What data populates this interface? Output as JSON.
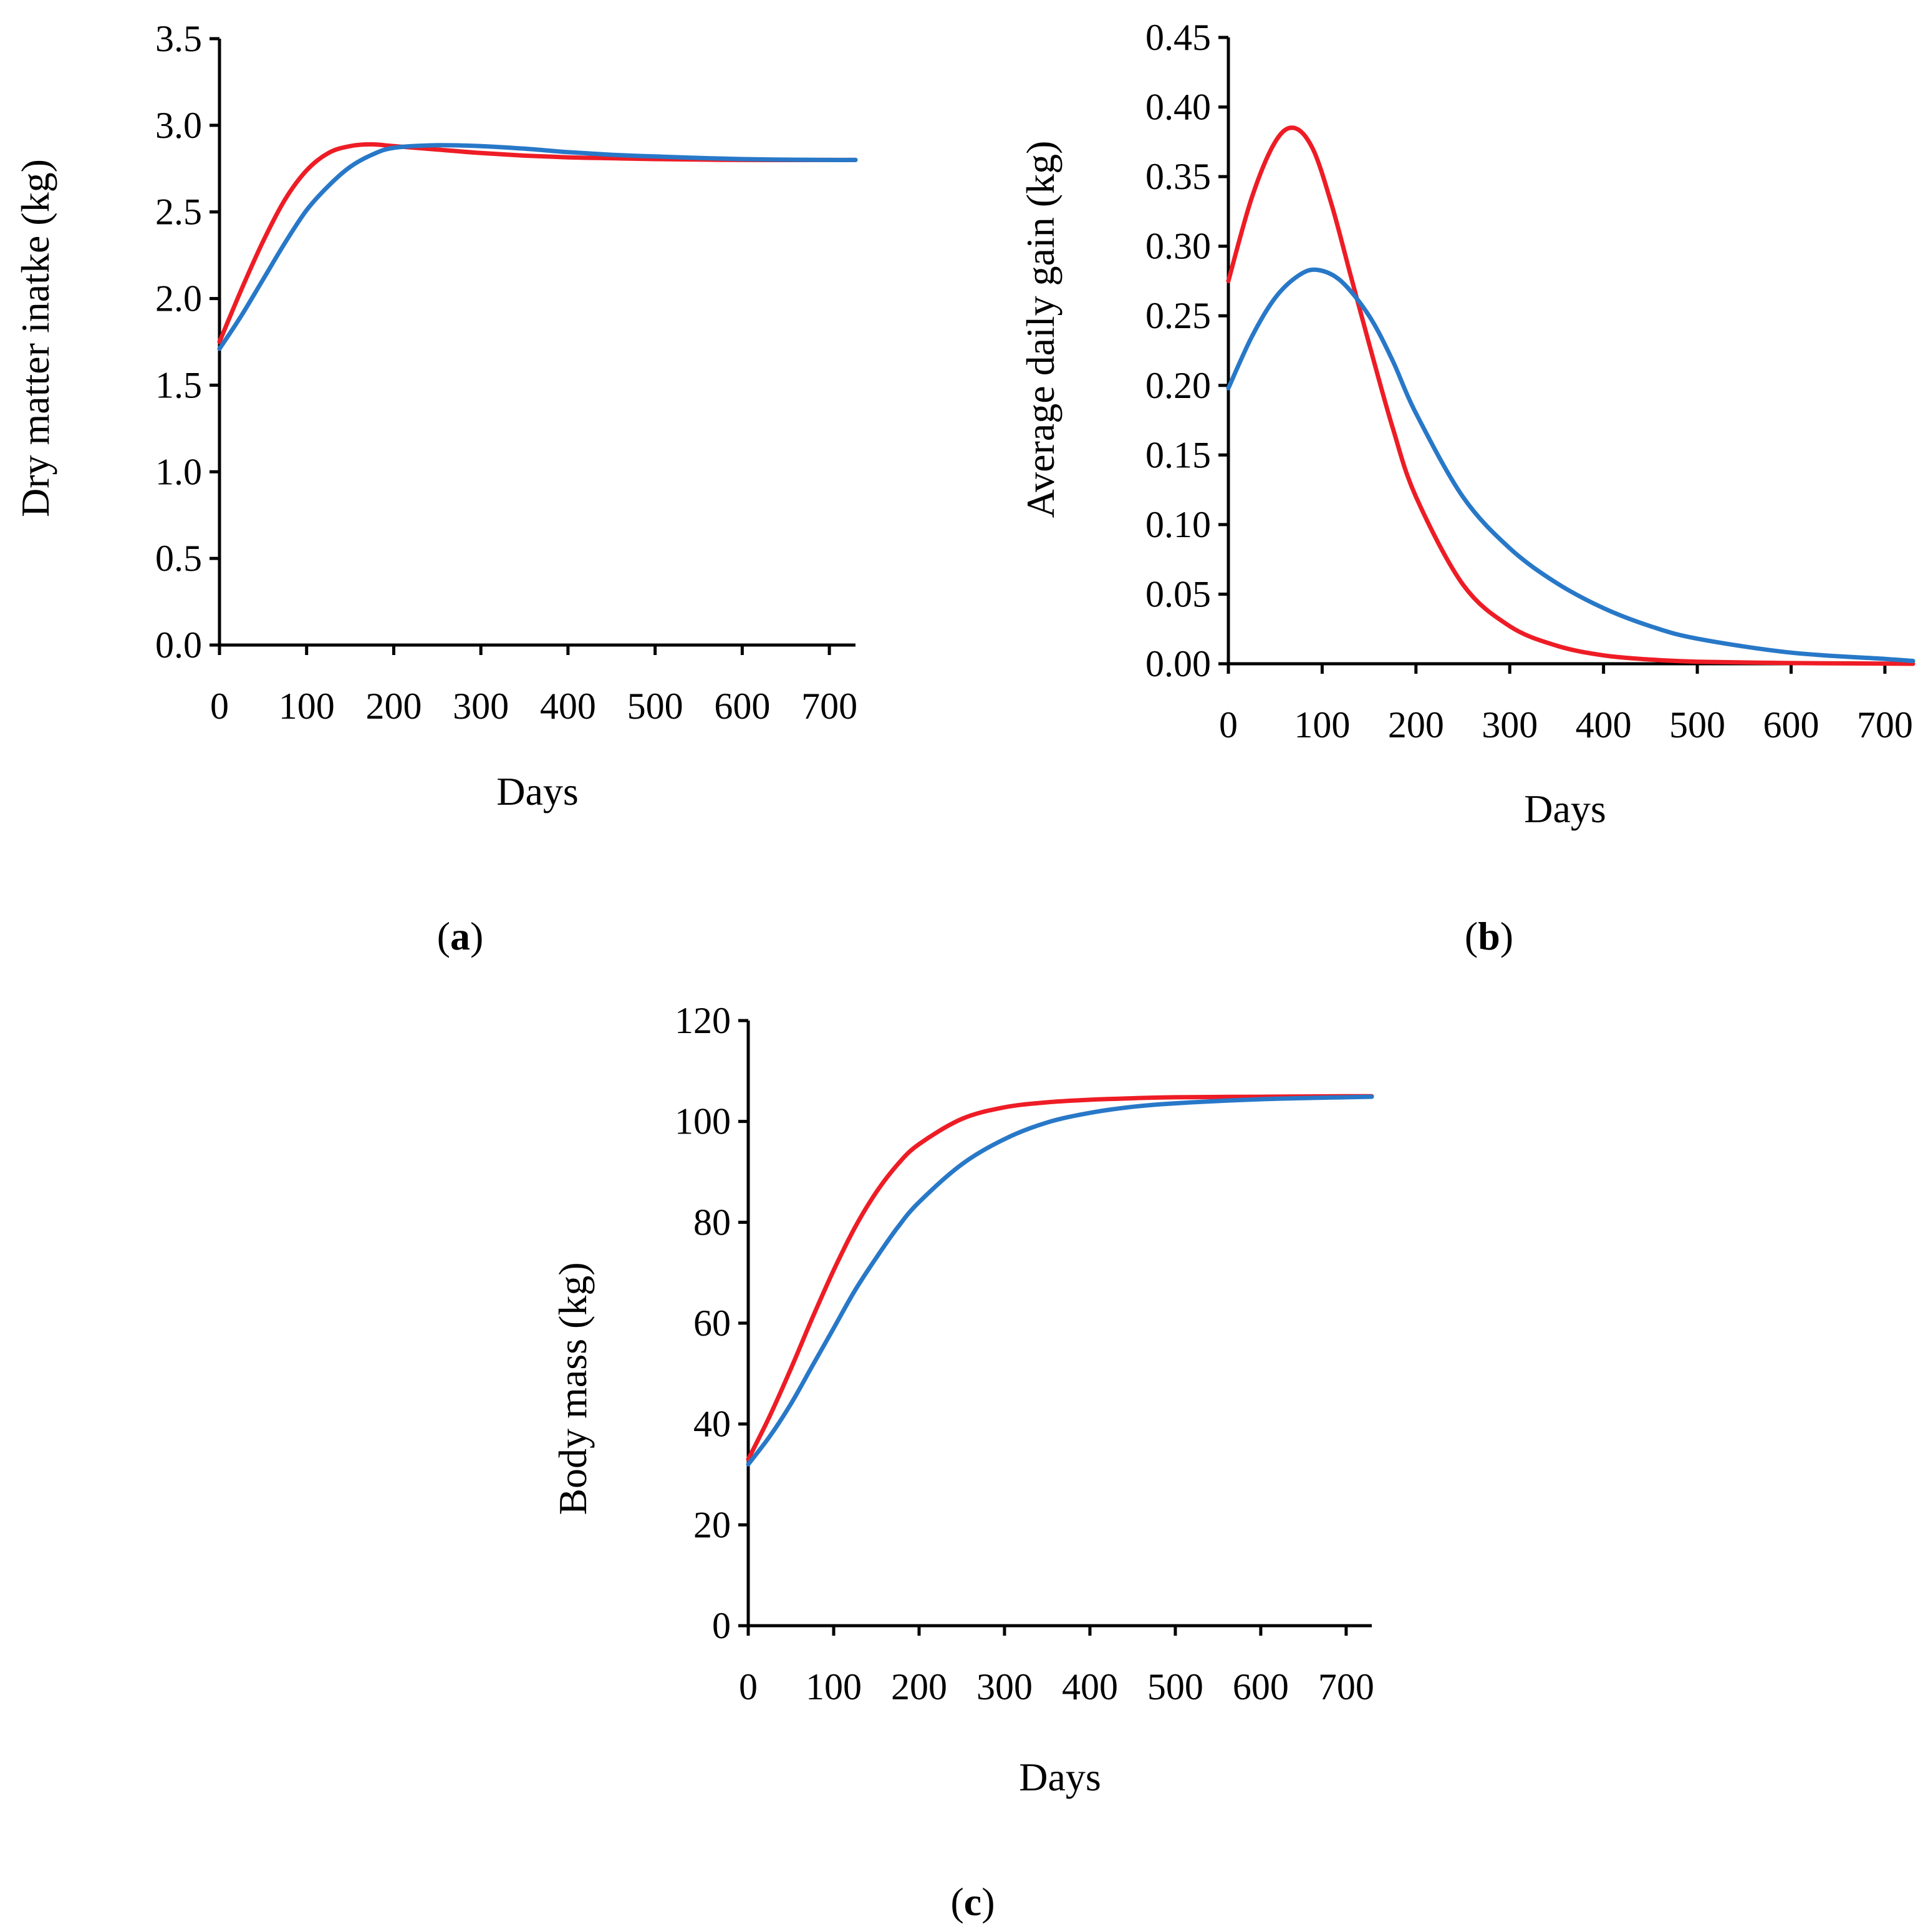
{
  "chart_data": [
    {
      "id": "a",
      "type": "line",
      "panel_label": "a",
      "xlabel": "Days",
      "ylabel": "Dry matter inatke (kg)",
      "xlim": [
        0,
        730
      ],
      "ylim": [
        0,
        3.5
      ],
      "xticks": [
        0,
        100,
        200,
        300,
        400,
        500,
        600,
        700
      ],
      "xtick_labels": [
        "0",
        "100",
        "200",
        "300",
        "400",
        "500",
        "600",
        "700"
      ],
      "yticks": [
        0,
        0.5,
        1,
        1.5,
        2,
        2.5,
        3,
        3.5
      ],
      "ytick_labels": [
        "0.0",
        "0.5",
        "1.0",
        "1.5",
        "2.0",
        "2.5",
        "3.0",
        "3.5"
      ],
      "grid": false,
      "series": [
        {
          "name": "red",
          "color": "#EE1C25",
          "x": [
            0,
            25,
            50,
            75,
            100,
            125,
            150,
            175,
            200,
            250,
            300,
            350,
            400,
            450,
            500,
            600,
            700,
            730
          ],
          "y": [
            1.75,
            2.05,
            2.33,
            2.57,
            2.74,
            2.84,
            2.88,
            2.89,
            2.88,
            2.86,
            2.84,
            2.825,
            2.815,
            2.81,
            2.805,
            2.8,
            2.8,
            2.8
          ]
        },
        {
          "name": "blue",
          "color": "#2878C8",
          "x": [
            0,
            25,
            50,
            75,
            100,
            125,
            150,
            175,
            200,
            250,
            300,
            350,
            400,
            450,
            500,
            600,
            700,
            730
          ],
          "y": [
            1.71,
            1.9,
            2.11,
            2.32,
            2.51,
            2.65,
            2.76,
            2.83,
            2.87,
            2.885,
            2.88,
            2.865,
            2.845,
            2.83,
            2.82,
            2.805,
            2.8,
            2.8
          ]
        }
      ]
    },
    {
      "id": "b",
      "type": "line",
      "panel_label": "b",
      "xlabel": "Days",
      "ylabel": "Average daily gain (kg)",
      "xlim": [
        0,
        730
      ],
      "ylim": [
        0,
        0.45
      ],
      "xticks": [
        0,
        100,
        200,
        300,
        400,
        500,
        600,
        700
      ],
      "xtick_labels": [
        "0",
        "100",
        "200",
        "300",
        "400",
        "500",
        "600",
        "700"
      ],
      "yticks": [
        0,
        0.05,
        0.1,
        0.15,
        0.2,
        0.25,
        0.3,
        0.35,
        0.4,
        0.45
      ],
      "ytick_labels": [
        "0.00",
        "0.05",
        "0.10",
        "0.15",
        "0.20",
        "0.25",
        "0.30",
        "0.35",
        "0.40",
        "0.45"
      ],
      "grid": false,
      "series": [
        {
          "name": "red",
          "color": "#EE1C25",
          "x": [
            0,
            25,
            50,
            70,
            90,
            110,
            130,
            150,
            175,
            200,
            250,
            300,
            350,
            400,
            450,
            500,
            600,
            700,
            730
          ],
          "y": [
            0.275,
            0.335,
            0.375,
            0.385,
            0.37,
            0.33,
            0.28,
            0.23,
            0.17,
            0.12,
            0.057,
            0.027,
            0.013,
            0.006,
            0.003,
            0.0015,
            0.0005,
            0.0001,
            0.0
          ]
        },
        {
          "name": "blue",
          "color": "#2878C8",
          "x": [
            0,
            25,
            50,
            75,
            95,
            120,
            150,
            175,
            200,
            250,
            300,
            350,
            400,
            450,
            500,
            600,
            700,
            730
          ],
          "y": [
            0.198,
            0.235,
            0.263,
            0.279,
            0.283,
            0.275,
            0.25,
            0.218,
            0.18,
            0.12,
            0.083,
            0.058,
            0.04,
            0.027,
            0.018,
            0.008,
            0.0035,
            0.002
          ]
        }
      ]
    },
    {
      "id": "c",
      "type": "line",
      "panel_label": "c",
      "xlabel": "Days",
      "ylabel": "Body mass (kg)",
      "xlim": [
        0,
        730
      ],
      "ylim": [
        0,
        120
      ],
      "xticks": [
        0,
        100,
        200,
        300,
        400,
        500,
        600,
        700
      ],
      "xtick_labels": [
        "0",
        "100",
        "200",
        "300",
        "400",
        "500",
        "600",
        "700"
      ],
      "yticks": [
        0,
        20,
        40,
        60,
        80,
        100,
        120
      ],
      "ytick_labels": [
        "0",
        "20",
        "40",
        "60",
        "80",
        "100",
        "120"
      ],
      "grid": false,
      "series": [
        {
          "name": "red",
          "color": "#EE1C25",
          "x": [
            0,
            25,
            50,
            75,
            100,
            125,
            150,
            175,
            200,
            250,
            300,
            350,
            400,
            450,
            500,
            600,
            700,
            730
          ],
          "y": [
            33,
            41.5,
            51,
            61,
            70.5,
            79,
            86,
            91.5,
            95.5,
            100.5,
            102.8,
            103.8,
            104.3,
            104.6,
            104.8,
            104.9,
            105,
            105
          ]
        },
        {
          "name": "blue",
          "color": "#2878C8",
          "x": [
            0,
            25,
            50,
            75,
            100,
            125,
            150,
            175,
            200,
            250,
            300,
            350,
            400,
            450,
            500,
            600,
            700,
            730
          ],
          "y": [
            32,
            37.5,
            44,
            51.5,
            59,
            66.5,
            73,
            79,
            84,
            91.5,
            96.5,
            99.8,
            101.7,
            102.9,
            103.6,
            104.4,
            104.8,
            104.9
          ]
        }
      ]
    }
  ]
}
